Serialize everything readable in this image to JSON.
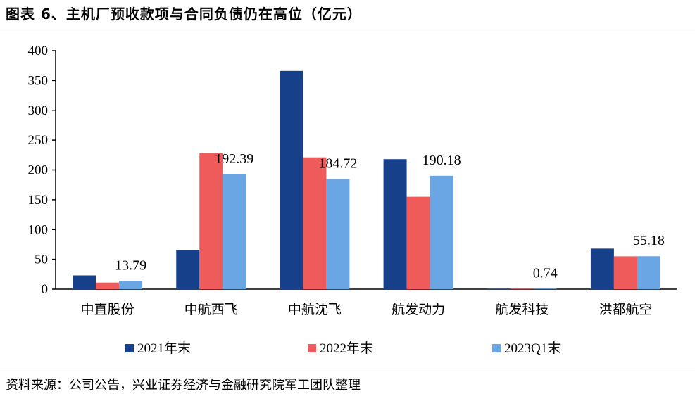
{
  "header": {
    "title": "图表 6、主机厂预收款项与合同负债仍在高位（亿元）"
  },
  "footer": {
    "source": "资料来源：公司公告，兴业证券经济与金融研究院军工团队整理"
  },
  "chart_data": {
    "type": "bar",
    "categories": [
      "中直股份",
      "中航西飞",
      "中航沈飞",
      "航发动力",
      "航发科技",
      "洪都航空"
    ],
    "series": [
      {
        "name": "2021年末",
        "color": "#17408b",
        "values": [
          23,
          66,
          366,
          218,
          0.5,
          68
        ]
      },
      {
        "name": "2022年末",
        "color": "#ef5a5a",
        "values": [
          11,
          228,
          221,
          155,
          0.6,
          55
        ]
      },
      {
        "name": "2023Q1末",
        "color": "#6aa6e4",
        "values": [
          13.79,
          192.39,
          184.72,
          190.18,
          0.74,
          55.18
        ]
      }
    ],
    "data_labels": [
      {
        "category_index": 0,
        "series_index": 2,
        "text": "13.79"
      },
      {
        "category_index": 1,
        "series_index": 2,
        "text": "192.39"
      },
      {
        "category_index": 2,
        "series_index": 2,
        "text": "184.72"
      },
      {
        "category_index": 3,
        "series_index": 2,
        "text": "190.18"
      },
      {
        "category_index": 4,
        "series_index": 2,
        "text": "0.74"
      },
      {
        "category_index": 5,
        "series_index": 2,
        "text": "55.18"
      }
    ],
    "yticks": [
      "0",
      "50",
      "100",
      "150",
      "200",
      "250",
      "300",
      "350",
      "400"
    ],
    "ylim": [
      0,
      400
    ],
    "grid": false,
    "legend_position": "bottom"
  }
}
